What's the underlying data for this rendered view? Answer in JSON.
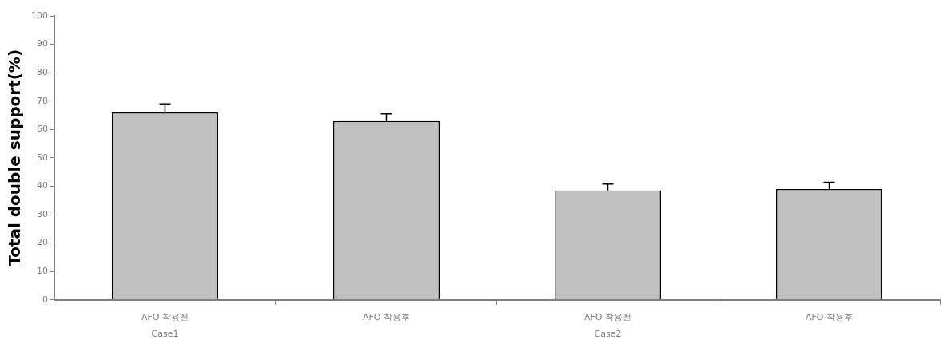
{
  "chart_data": {
    "type": "bar",
    "ylabel": "Total double support(%)",
    "categories": [
      "AFO 착용전",
      "AFO 착용후",
      "AFO 착용전",
      "AFO 착용후"
    ],
    "values": [
      66,
      63,
      38.5,
      39
    ],
    "errors": [
      [
        66,
        69
      ],
      [
        63,
        65.5
      ],
      [
        38.5,
        40.8
      ],
      [
        39,
        41.4
      ]
    ],
    "color": "#c0c0c0",
    "ylim": [
      0,
      100
    ],
    "yticks": [
      0,
      10,
      20,
      30,
      40,
      50,
      60,
      70,
      80,
      90,
      100
    ],
    "annotations": [
      "Case1",
      "Case2"
    ]
  }
}
